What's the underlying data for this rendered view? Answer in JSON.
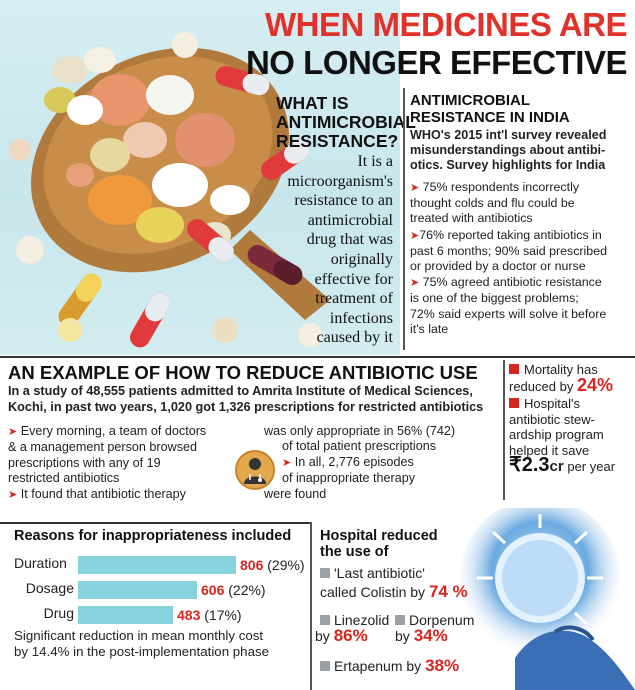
{
  "title": {
    "line1": "WHEN MEDICINES ARE",
    "line2": "NO LONGER EFFECTIVE"
  },
  "what_is": {
    "heading_l1": "WHAT IS",
    "heading_l2": "ANTIMICROBIAL",
    "heading_l3": "RESISTANCE?",
    "body_lines": [
      "It is a",
      "microorganism's",
      "resistance to an",
      "antimicrobial",
      "drug that was",
      "originally",
      "effective for",
      "treatment of",
      "infections",
      "caused by it"
    ]
  },
  "india": {
    "heading_l1": "ANTIMICROBIAL",
    "heading_l2": "RESISTANCE IN INDIA",
    "intro_lines": [
      "WHO's 2015 int'l survey revealed",
      "misunderstandings about antibi-",
      "otics. Survey highlights for India"
    ],
    "points": [
      [
        "75% respondents incorrectly",
        "thought colds and flu could be",
        "treated with antibiotics"
      ],
      [
        "76% reported taking antibiotics in",
        "past 6 months; 90% said prescribed",
        "or provided by a doctor or nurse"
      ],
      [
        "75% agreed antibiotic resistance",
        "is one of the biggest problems;",
        "72% said experts will solve it before",
        "it's late"
      ]
    ]
  },
  "example": {
    "heading": "AN EXAMPLE OF HOW TO REDUCE ANTIBIOTIC USE",
    "intro_l1": "In a study of 48,555 patients admitted to Amrita Institute of Medical Sciences,",
    "intro_l2": "Kochi, in past two years, 1,020 got 1,326 prescriptions for restricted antibiotics",
    "col1": {
      "p1": [
        "Every morning, a team of doctors",
        "& a management person browsed",
        "prescriptions with any of 19",
        "restricted antibiotics"
      ],
      "p2": [
        "It found that antibiotic therapy"
      ]
    },
    "col2": {
      "p1": [
        "was only appropriate in 56% (742)",
        "of total patient prescriptions"
      ],
      "p2": [
        "In all, 2,776 episodes",
        "of inappropriate therapy",
        "were found"
      ]
    },
    "doctor_icon": "doctor-stethoscope-icon"
  },
  "outcomes": {
    "mortality_l1": "Mortality has",
    "mortality_l2": "reduced by",
    "mortality_val": "24%",
    "saving_lines": [
      "Hospital's",
      "antibiotic stew-",
      "ardship program",
      "helped it save"
    ],
    "saving_amount": "₹2.3",
    "saving_unit": "cr",
    "saving_suffix": "per year"
  },
  "reasons": {
    "heading": "Reasons for inappropriateness included",
    "items": [
      {
        "label": "Duration",
        "count": "806",
        "pct": "(29%)",
        "value": 806
      },
      {
        "label": "Dosage",
        "count": "606",
        "pct": "(22%)",
        "value": 606
      },
      {
        "label": "Drug",
        "count": "483",
        "pct": "(17%)",
        "value": 483
      }
    ],
    "footer_l1": "Significant reduction in mean monthly cost",
    "footer_l2": "by 14.4% in the post-implementation phase"
  },
  "hospital": {
    "heading_l1": "Hospital reduced",
    "heading_l2": "the use of",
    "colistin_l1": "'Last antibiotic'",
    "colistin_l2": "called Colistin by",
    "colistin_pct": "74 %",
    "linezolid_l1": "Linezolid",
    "linezolid_by": "by",
    "linezolid_pct": "86%",
    "dorpenum_l1": "Dorpenum",
    "dorpenum_by": "by",
    "dorpenum_pct": "34%",
    "ertapenum_l1": "Ertapenum by",
    "ertapenum_pct": "38%"
  },
  "colors": {
    "accent_red": "#d8261f",
    "bar_blue": "#86d3de",
    "photo_bg": "#c7e6ec"
  }
}
